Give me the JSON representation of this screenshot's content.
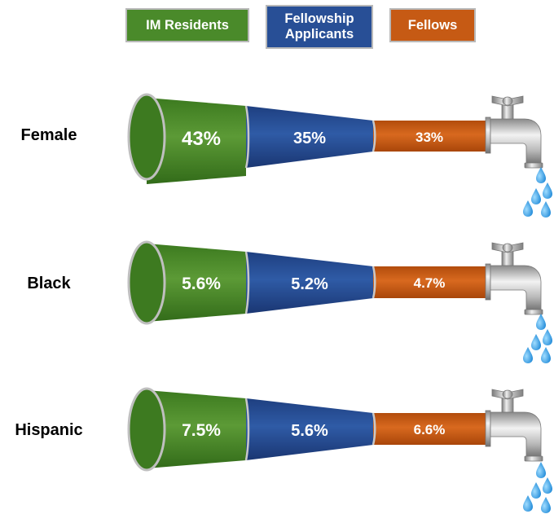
{
  "legend": [
    {
      "label": "IM Residents",
      "color": "#4a8a2a"
    },
    {
      "label": "Fellowship Applicants",
      "line1": "Fellowship",
      "line2": "Applicants",
      "color": "#284f96"
    },
    {
      "label": "Fellows",
      "color": "#c65a14"
    }
  ],
  "rows": [
    {
      "label": "Female",
      "im_residents": "43%",
      "fellowship_applicants": "35%",
      "fellows": "33%"
    },
    {
      "label": "Black",
      "im_residents": "5.6%",
      "fellowship_applicants": "5.2%",
      "fellows": "4.7%"
    },
    {
      "label": "Hispanic",
      "im_residents": "7.5%",
      "fellowship_applicants": "5.6%",
      "fellows": "6.6%"
    }
  ],
  "icons": [
    "faucet-icon",
    "water-drops-icon"
  ]
}
